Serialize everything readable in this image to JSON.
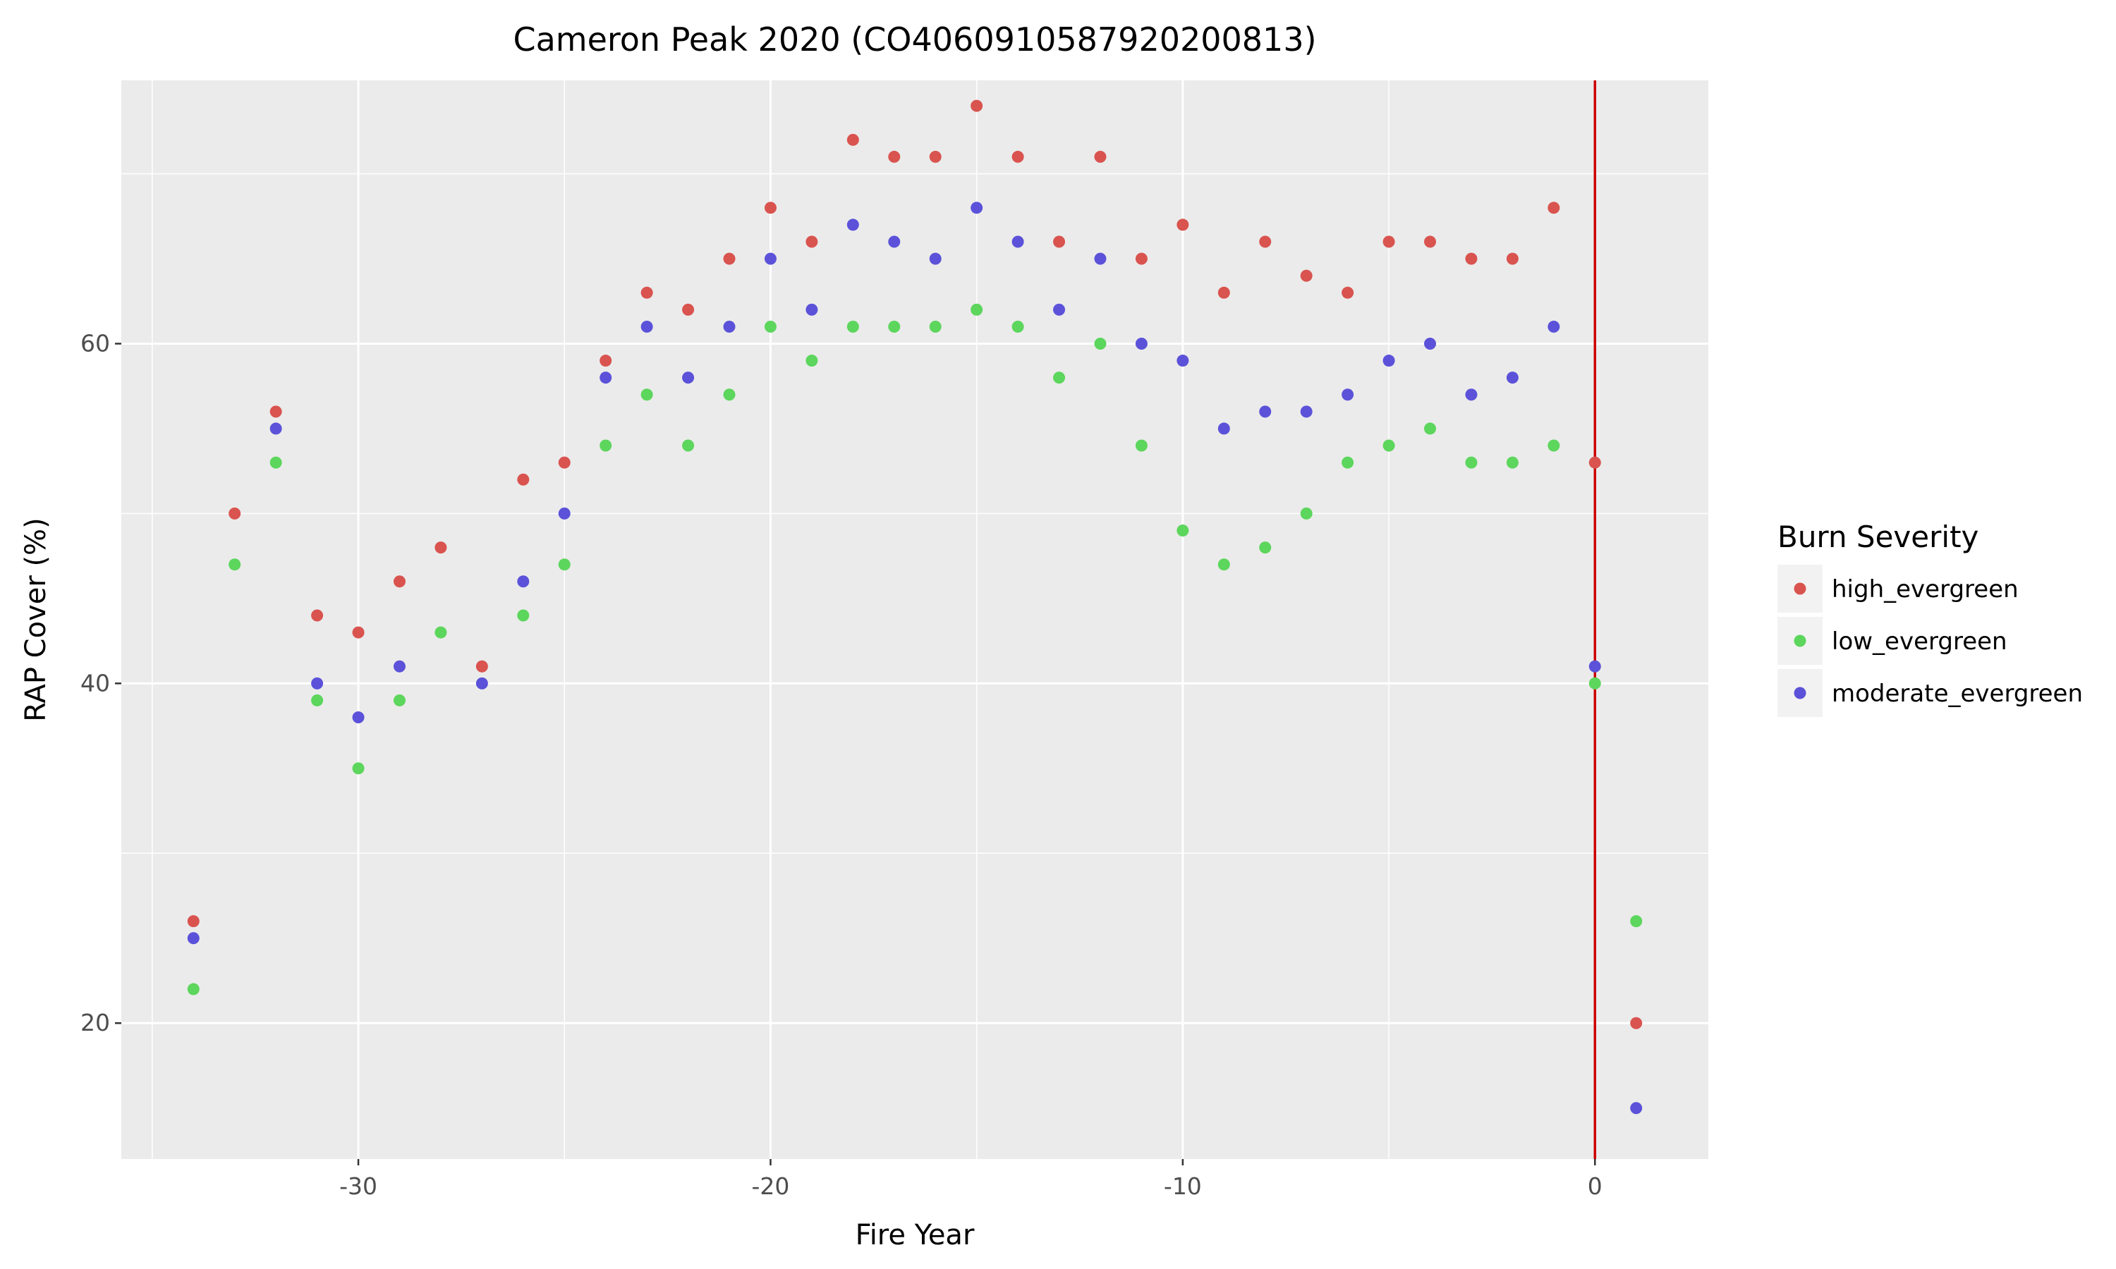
{
  "chart_data": {
    "type": "scatter",
    "title": "Cameron Peak 2020 (CO4060910587920200813)",
    "xlabel": "Fire Year",
    "ylabel": "RAP Cover (%)",
    "xlim": [
      -35.75,
      2.75
    ],
    "ylim": [
      12,
      75.5
    ],
    "x_ticks": [
      -30,
      -20,
      -10,
      0
    ],
    "y_ticks": [
      20,
      40,
      60
    ],
    "grid": true,
    "vline": {
      "x": 0,
      "color": "#cc0000"
    },
    "legend": {
      "title": "Burn Severity",
      "position": "right"
    },
    "series": [
      {
        "name": "high_evergreen",
        "color": "#d9534f",
        "x": [
          -34,
          -33,
          -32,
          -31,
          -30,
          -29,
          -28,
          -27,
          -26,
          -25,
          -24,
          -23,
          -22,
          -21,
          -20,
          -19,
          -18,
          -17,
          -16,
          -15,
          -14,
          -13,
          -12,
          -11,
          -10,
          -9,
          -8,
          -7,
          -6,
          -5,
          -4,
          -3,
          -2,
          -1,
          0,
          1
        ],
        "y": [
          26,
          50,
          56,
          44,
          43,
          46,
          48,
          41,
          52,
          53,
          59,
          63,
          62,
          65,
          68,
          66,
          72,
          71,
          71,
          74,
          71,
          66,
          71,
          65,
          67,
          63,
          66,
          64,
          63,
          66,
          66,
          65,
          65,
          68,
          53,
          20
        ]
      },
      {
        "name": "low_evergreen",
        "color": "#5cd65c",
        "x": [
          -34,
          -33,
          -32,
          -31,
          -30,
          -29,
          -28,
          -26,
          -25,
          -24,
          -23,
          -22,
          -21,
          -20,
          -19,
          -18,
          -17,
          -16,
          -15,
          -14,
          -13,
          -12,
          -11,
          -10,
          -9,
          -8,
          -7,
          -6,
          -5,
          -4,
          -3,
          -2,
          -1,
          0,
          1
        ],
        "y": [
          22,
          47,
          53,
          39,
          35,
          39,
          43,
          44,
          47,
          54,
          57,
          54,
          57,
          61,
          59,
          61,
          61,
          61,
          62,
          61,
          58,
          60,
          54,
          49,
          47,
          48,
          50,
          53,
          54,
          55,
          53,
          53,
          54,
          40,
          26
        ]
      },
      {
        "name": "moderate_evergreen",
        "color": "#5b52d9",
        "x": [
          -34,
          -32,
          -31,
          -30,
          -29,
          -27,
          -26,
          -25,
          -24,
          -23,
          -22,
          -21,
          -20,
          -19,
          -18,
          -17,
          -16,
          -15,
          -14,
          -13,
          -12,
          -11,
          -10,
          -9,
          -8,
          -7,
          -6,
          -5,
          -4,
          -3,
          -2,
          -1,
          0,
          1
        ],
        "y": [
          25,
          55,
          40,
          38,
          41,
          40,
          46,
          50,
          58,
          61,
          58,
          61,
          65,
          62,
          67,
          66,
          65,
          68,
          66,
          62,
          65,
          60,
          59,
          55,
          56,
          56,
          57,
          59,
          60,
          57,
          58,
          61,
          41,
          15
        ]
      }
    ]
  }
}
